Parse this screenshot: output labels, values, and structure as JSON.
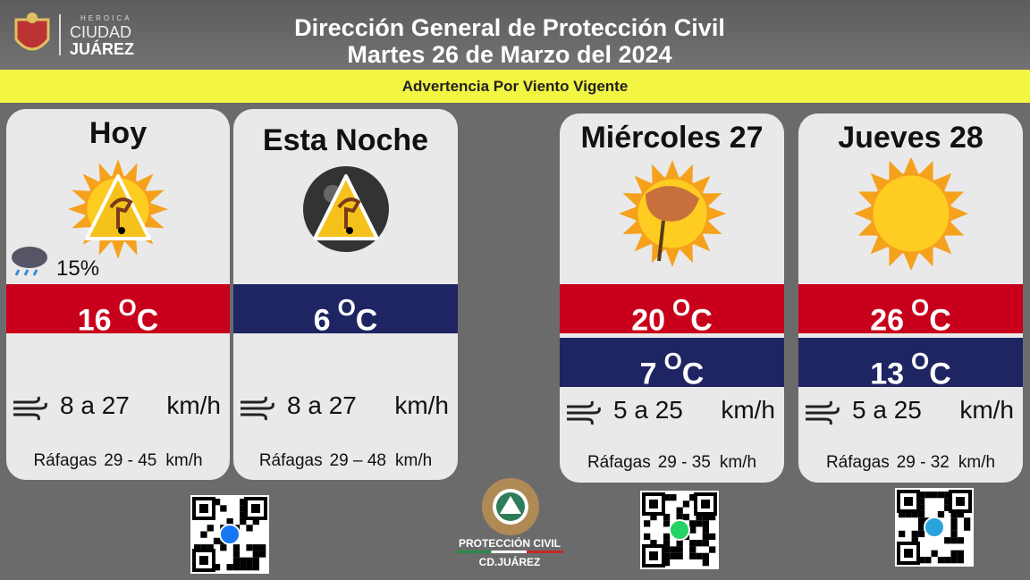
{
  "header": {
    "logo_small": "HEROICA",
    "logo_city": "CIUDAD",
    "logo_name": "JUÁREZ",
    "title": "Dirección General de Protección Civil",
    "date": "Martes 26 de Marzo del 2024"
  },
  "alert": "Advertencia Por Viento Vigente",
  "units": {
    "degree": "O",
    "celsius": "C"
  },
  "cards": [
    {
      "title": "Hoy",
      "icon": "sun-warning",
      "precip": "15%",
      "temps": [
        {
          "kind": "high",
          "value": "16"
        }
      ],
      "wind": "8 a 27",
      "wind_unit": "km/h",
      "gust_label": "Ráfagas",
      "gust": "29 - 45",
      "gust_unit": "km/h"
    },
    {
      "title": "Esta Noche",
      "icon": "moon-warning",
      "temps": [
        {
          "kind": "low",
          "value": "6"
        }
      ],
      "wind": "8 a 27",
      "wind_unit": "km/h",
      "gust_label": "Ráfagas",
      "gust": "29 – 48",
      "gust_unit": "km/h"
    },
    {
      "title": "Miércoles 27",
      "icon": "sun-wind",
      "temps": [
        {
          "kind": "high",
          "value": "20"
        },
        {
          "kind": "low",
          "value": "7"
        }
      ],
      "wind": "5 a 25",
      "wind_unit": "km/h",
      "gust_label": "Ráfagas",
      "gust": "29 - 35",
      "gust_unit": "km/h"
    },
    {
      "title": "Jueves 28",
      "icon": "sun",
      "temps": [
        {
          "kind": "high",
          "value": "26"
        },
        {
          "kind": "low",
          "value": "13"
        }
      ],
      "wind": "5 a 25",
      "wind_unit": "km/h",
      "gust_label": "Ráfagas",
      "gust": "29 - 32",
      "gust_unit": "km/h"
    }
  ],
  "footer": {
    "org": "PROTECCIÓN CIVIL",
    "city": "CD.JUÁREZ"
  }
}
